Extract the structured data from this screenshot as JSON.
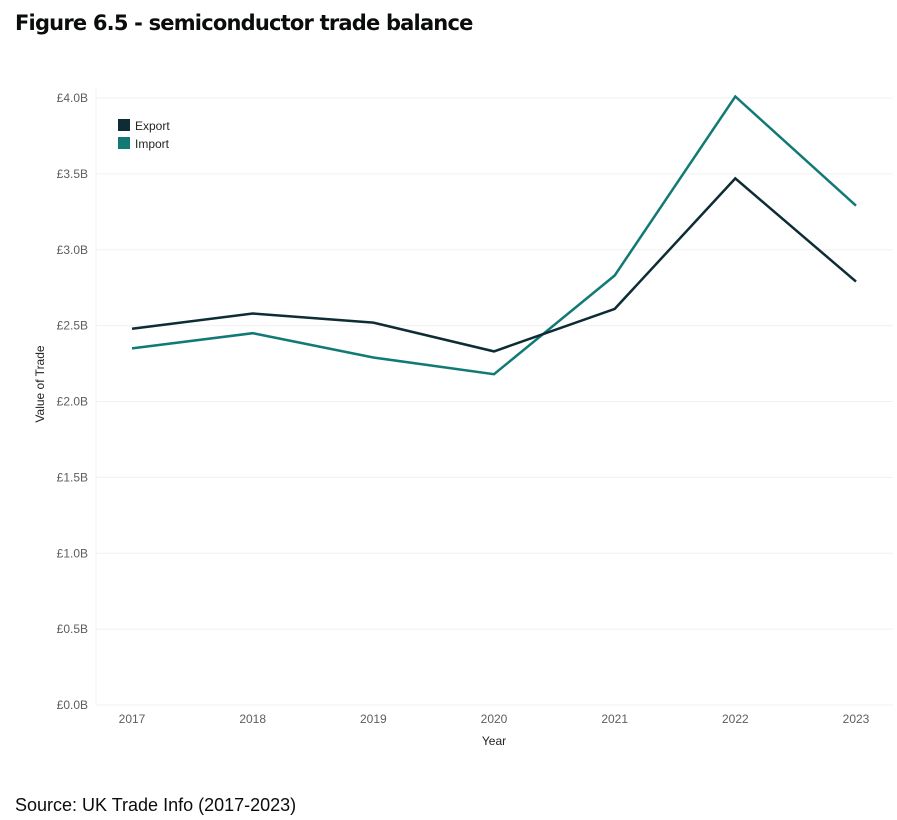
{
  "title": "Figure 6.5 - semiconductor trade balance",
  "source": "Source: UK Trade Info (2017-2023)",
  "chart_data": {
    "type": "line",
    "title": "Figure 6.5 - semiconductor trade balance",
    "xlabel": "Year",
    "ylabel": "Value of Trade",
    "categories": [
      "2017",
      "2018",
      "2019",
      "2020",
      "2021",
      "2022",
      "2023"
    ],
    "ylim": [
      0,
      4.0
    ],
    "yticks": [
      0,
      0.5,
      1.0,
      1.5,
      2.0,
      2.5,
      3.0,
      3.5,
      4.0
    ],
    "ytick_labels": [
      "£0.0B",
      "£0.5B",
      "£1.0B",
      "£1.5B",
      "£2.0B",
      "£2.5B",
      "£3.0B",
      "£3.5B",
      "£4.0B"
    ],
    "grid": true,
    "legend_position": "top-left",
    "series": [
      {
        "name": "Export",
        "color": "#0e2c33",
        "values": [
          2.48,
          2.58,
          2.52,
          2.33,
          2.61,
          3.47,
          2.79
        ]
      },
      {
        "name": "Import",
        "color": "#117a75",
        "values": [
          2.35,
          2.45,
          2.29,
          2.18,
          2.83,
          4.01,
          3.29
        ]
      }
    ]
  }
}
